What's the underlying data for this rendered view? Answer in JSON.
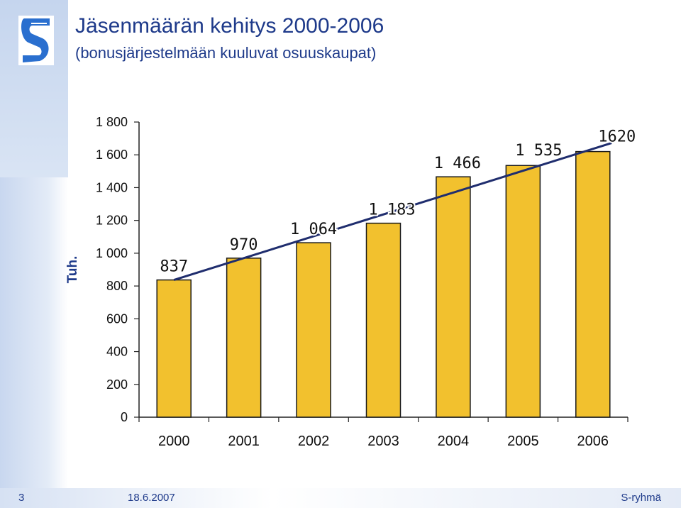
{
  "header": {
    "title": "Jäsenmäärän kehitys 2000-2006",
    "subtitle": "(bonusjärjestelmään kuuluvat osuuskaupat)"
  },
  "footer": {
    "page_number": "3",
    "date": "18.6.2007",
    "brand": "S-ryhmä"
  },
  "colors": {
    "bar_fill": "#f2c12e",
    "bar_stroke": "#1a1a1a",
    "trend_line": "#1f2d6e",
    "title_color": "#1e3a8a"
  },
  "chart_data": {
    "type": "bar",
    "title": "Jäsenmäärän kehitys 2000-2006",
    "ylabel": "Tuh.",
    "xlabel": "",
    "categories": [
      "2000",
      "2001",
      "2002",
      "2003",
      "2004",
      "2005",
      "2006"
    ],
    "values": [
      837,
      970,
      1064,
      1183,
      1466,
      1535,
      1620
    ],
    "data_labels": [
      "837",
      "970",
      "1 064",
      "1 183",
      "1 466",
      "1 535",
      "1620"
    ],
    "ylim": [
      0,
      1800
    ],
    "yticks": [
      0,
      200,
      400,
      600,
      800,
      1000,
      1200,
      1400,
      1600,
      1800
    ],
    "ytick_labels": [
      "0",
      "200",
      "400",
      "600",
      "800",
      "1 000",
      "1 200",
      "1 400",
      "1 600",
      "1 800"
    ],
    "grid": false,
    "trend_line": true
  }
}
